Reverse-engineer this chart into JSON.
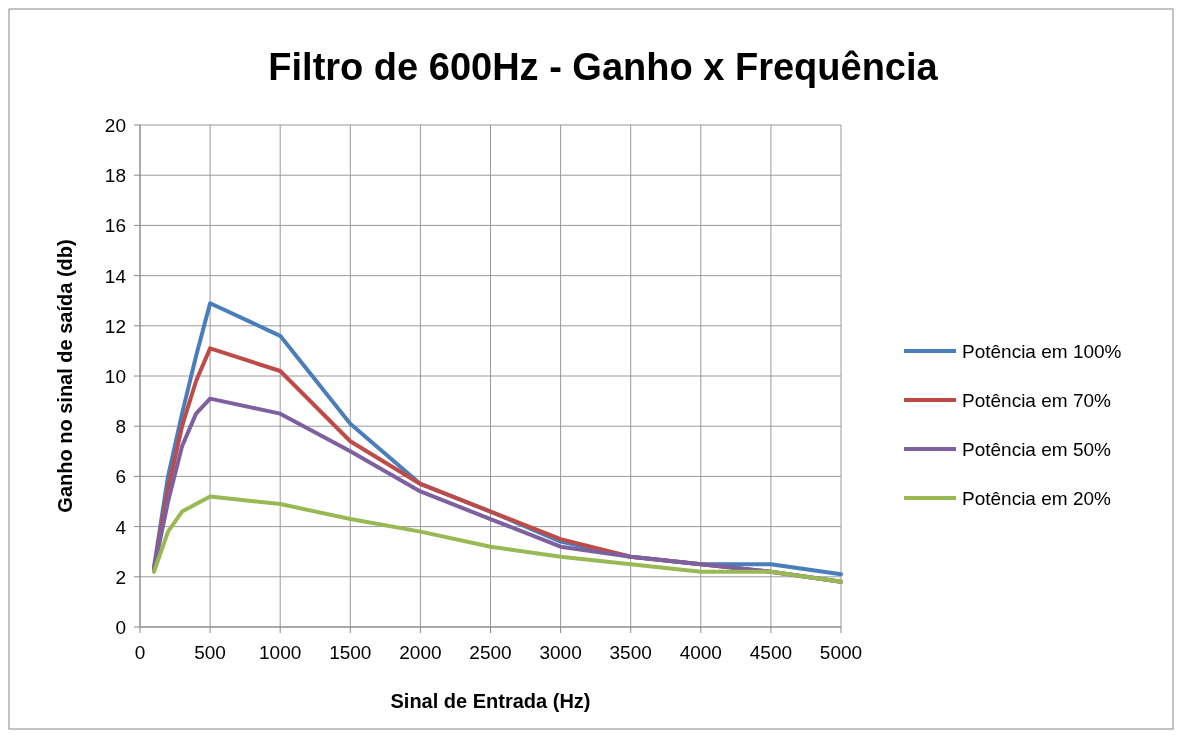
{
  "chart_data": {
    "type": "line",
    "title": "Filtro de 600Hz - Ganho x Frequência",
    "xlabel": "Sinal de Entrada (Hz)",
    "ylabel": "Ganho no sinal de saída (db)",
    "x": [
      100,
      200,
      300,
      400,
      500,
      1000,
      1500,
      2000,
      2500,
      3000,
      3500,
      4000,
      4500,
      5000
    ],
    "series": [
      {
        "name": "Potência em 100%",
        "color": "#4a7ebb",
        "values": [
          2.4,
          6.0,
          8.5,
          10.8,
          12.9,
          11.6,
          8.1,
          5.7,
          4.6,
          3.4,
          2.8,
          2.5,
          2.5,
          2.1
        ]
      },
      {
        "name": "Potência em 70%",
        "color": "#be4b48",
        "values": [
          2.3,
          5.5,
          8.0,
          9.8,
          11.1,
          10.2,
          7.4,
          5.7,
          4.6,
          3.5,
          2.8,
          2.5,
          2.2,
          1.8
        ]
      },
      {
        "name": "Potência em 50%",
        "color": "#7d60a0",
        "values": [
          2.3,
          5.0,
          7.2,
          8.5,
          9.1,
          8.5,
          7.0,
          5.4,
          4.3,
          3.2,
          2.8,
          2.5,
          2.2,
          1.8
        ]
      },
      {
        "name": "Potência em 20%",
        "color": "#98b954",
        "values": [
          2.2,
          3.8,
          4.6,
          4.9,
          5.2,
          4.9,
          4.3,
          3.8,
          3.2,
          2.8,
          2.5,
          2.2,
          2.2,
          1.8
        ]
      }
    ],
    "xlim": [
      0,
      5000
    ],
    "xticks": [
      0,
      500,
      1000,
      1500,
      2000,
      2500,
      3000,
      3500,
      4000,
      4500,
      5000
    ],
    "ylim": [
      0,
      20
    ],
    "yticks": [
      0,
      2,
      4,
      6,
      8,
      10,
      12,
      14,
      16,
      18,
      20
    ],
    "grid": true,
    "legend": "right",
    "line_style": "solid"
  }
}
